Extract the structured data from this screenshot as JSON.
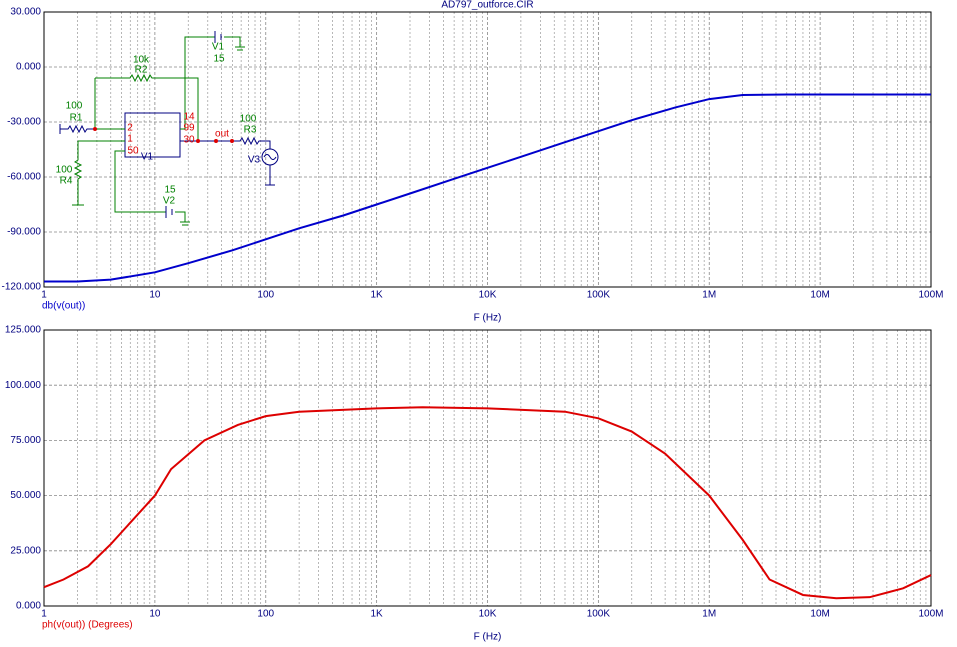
{
  "chart_data": [
    {
      "type": "line",
      "title": "AD797_outforce.CIR",
      "x_label": "F (Hz)",
      "log_x": true,
      "grid": true,
      "x": [
        1,
        2,
        4,
        10,
        20,
        50,
        100,
        200,
        500,
        1000,
        2000,
        5000,
        10000,
        20000,
        50000,
        100000,
        200000,
        500000,
        1000000,
        2000000,
        5000000,
        10000000,
        100000000
      ],
      "series": [
        {
          "name": "db(v(out))",
          "color": "#0000cc",
          "values": [
            -117,
            -117,
            -116,
            -112,
            -107,
            -100,
            -94,
            -88,
            -81,
            -75,
            -69,
            -61,
            -55,
            -49,
            -41,
            -35,
            -29,
            -22,
            -17.5,
            -15.3,
            -15,
            -15,
            -15
          ]
        }
      ],
      "xlim": [
        1,
        100000000
      ],
      "xticks": [
        1,
        10,
        100,
        {
          "value": 1000,
          "label": "1K"
        },
        {
          "value": 10000,
          "label": "10K"
        },
        {
          "value": 100000,
          "label": "100K"
        },
        {
          "value": 1000000,
          "label": "1M"
        },
        {
          "value": 10000000,
          "label": "10M"
        },
        {
          "value": 100000000,
          "label": "100M"
        }
      ],
      "ylim": [
        -120,
        30
      ],
      "yticks": [
        {
          "value": -120,
          "label": "-120.000"
        },
        {
          "value": -90,
          "label": "-90.000"
        },
        {
          "value": -60,
          "label": "-60.000"
        },
        {
          "value": -30,
          "label": "-30.000"
        },
        {
          "value": 0,
          "label": "0.000"
        },
        {
          "value": 30,
          "label": "30.000"
        }
      ]
    },
    {
      "type": "line",
      "x_label": "F (Hz)",
      "log_x": true,
      "grid": true,
      "x": [
        1,
        1.5,
        2.5,
        4,
        10,
        14,
        28,
        56,
        100,
        200,
        1000,
        2600,
        10000,
        50000,
        100000,
        200000,
        400000,
        1000000,
        2000000,
        3500000,
        7000000,
        14000000,
        28000000,
        56000000,
        100000000
      ],
      "series": [
        {
          "name": "ph(v(out)) (Degrees)",
          "color": "#dd0000",
          "values": [
            8.5,
            12,
            18,
            28,
            50,
            62,
            75,
            82,
            86,
            88,
            89.5,
            90,
            89.5,
            88,
            85,
            79,
            69,
            50,
            30,
            12,
            5,
            3.5,
            4,
            8,
            14
          ]
        }
      ],
      "xlim": [
        1,
        100000000
      ],
      "xticks": [
        1,
        10,
        100,
        {
          "value": 1000,
          "label": "1K"
        },
        {
          "value": 10000,
          "label": "10K"
        },
        {
          "value": 100000,
          "label": "100K"
        },
        {
          "value": 1000000,
          "label": "1M"
        },
        {
          "value": 10000000,
          "label": "10M"
        },
        {
          "value": 100000000,
          "label": "100M"
        }
      ],
      "ylim": [
        0,
        125
      ],
      "yticks": [
        {
          "value": 0,
          "label": "0.000"
        },
        {
          "value": 25,
          "label": "25.000"
        },
        {
          "value": 50,
          "label": "50.000"
        },
        {
          "value": 75,
          "label": "75.000"
        },
        {
          "value": 100,
          "label": "100.000"
        },
        {
          "value": 125,
          "label": "125.000"
        }
      ]
    }
  ],
  "schematic": {
    "labels": [
      "10k",
      "R2",
      "100",
      "R1",
      "2",
      "1",
      "50",
      "14",
      "99",
      "30",
      "V1",
      "V1",
      "15",
      "out",
      "100",
      "R3",
      "V3",
      "100",
      "R4",
      "15",
      "V2"
    ]
  }
}
